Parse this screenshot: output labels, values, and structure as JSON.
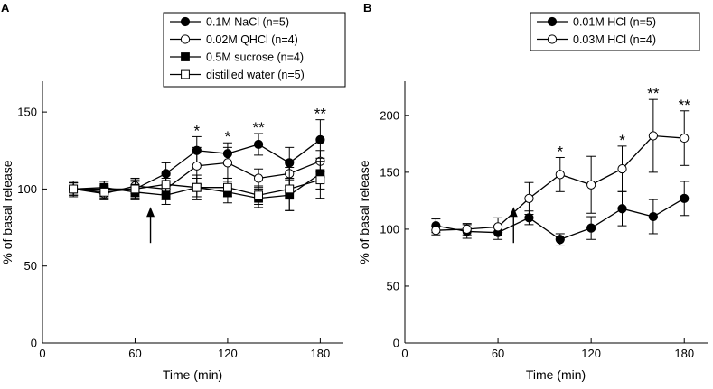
{
  "chart_data": [
    {
      "type": "line",
      "panel_label": "A",
      "xlabel": "Time (min)",
      "ylabel": "% of basal release",
      "xlim": [
        0,
        195
      ],
      "ylim": [
        0,
        170
      ],
      "xticks": [
        0,
        60,
        120,
        180
      ],
      "yticks": [
        0,
        50,
        100,
        150
      ],
      "legend_position": "top-right",
      "arrow_at_x": 70,
      "series": [
        {
          "name": "0.1M NaCl (n=5)",
          "marker": "filled-circle",
          "x": [
            20,
            40,
            60,
            80,
            100,
            120,
            140,
            160,
            180
          ],
          "y": [
            100,
            100,
            100,
            110,
            125,
            123,
            129,
            117,
            132
          ],
          "err": [
            5,
            5,
            6,
            7,
            9,
            7,
            7,
            10,
            13
          ]
        },
        {
          "name": "0.02M QHCl (n=4)",
          "marker": "open-circle",
          "x": [
            20,
            40,
            60,
            80,
            100,
            120,
            140,
            160,
            180
          ],
          "y": [
            100,
            97,
            102,
            100,
            115,
            117,
            107,
            110,
            118
          ],
          "err": [
            4,
            4,
            5,
            7,
            12,
            10,
            6,
            8,
            7
          ]
        },
        {
          "name": "0.5M sucrose (n=4)",
          "marker": "filled-square",
          "x": [
            20,
            40,
            60,
            80,
            100,
            120,
            140,
            160,
            180
          ],
          "y": [
            100,
            101,
            98,
            96,
            101,
            98,
            94,
            96,
            110
          ],
          "err": [
            4,
            4,
            5,
            6,
            8,
            7,
            6,
            10,
            10
          ]
        },
        {
          "name": "distilled water (n=5)",
          "marker": "open-square",
          "x": [
            20,
            40,
            60,
            80,
            100,
            120,
            140,
            160,
            180
          ],
          "y": [
            100,
            98,
            100,
            103,
            101,
            101,
            96,
            100,
            106
          ],
          "err": [
            4,
            4,
            5,
            6,
            6,
            6,
            6,
            14,
            12
          ]
        }
      ],
      "annotations": [
        {
          "text": "*",
          "x": 100
        },
        {
          "text": "*",
          "x": 120
        },
        {
          "text": "**",
          "x": 140
        },
        {
          "text": "**",
          "x": 180
        }
      ]
    },
    {
      "type": "line",
      "panel_label": "B",
      "xlabel": "Time (min)",
      "ylabel": "% of basal release",
      "xlim": [
        0,
        195
      ],
      "ylim": [
        0,
        230
      ],
      "xticks": [
        0,
        60,
        120,
        180
      ],
      "yticks": [
        0,
        50,
        100,
        150,
        200
      ],
      "legend_position": "top-right",
      "arrow_at_x": 70,
      "series": [
        {
          "name": "0.01M HCl (n=5)",
          "marker": "filled-circle",
          "x": [
            20,
            40,
            60,
            80,
            100,
            120,
            140,
            160,
            180
          ],
          "y": [
            103,
            98,
            97,
            110,
            91,
            101,
            118,
            111,
            127
          ],
          "err": [
            6,
            6,
            6,
            6,
            5,
            10,
            15,
            15,
            15
          ]
        },
        {
          "name": "0.03M HCl  (n=4)",
          "marker": "open-circle",
          "x": [
            20,
            40,
            60,
            80,
            100,
            120,
            140,
            160,
            180
          ],
          "y": [
            99,
            100,
            102,
            127,
            148,
            139,
            153,
            182,
            180
          ],
          "err": [
            4,
            5,
            8,
            14,
            15,
            25,
            20,
            32,
            24
          ]
        }
      ],
      "annotations": [
        {
          "text": "*",
          "x": 100
        },
        {
          "text": "*",
          "x": 140
        },
        {
          "text": "**",
          "x": 160
        },
        {
          "text": "**",
          "x": 180
        }
      ]
    }
  ]
}
